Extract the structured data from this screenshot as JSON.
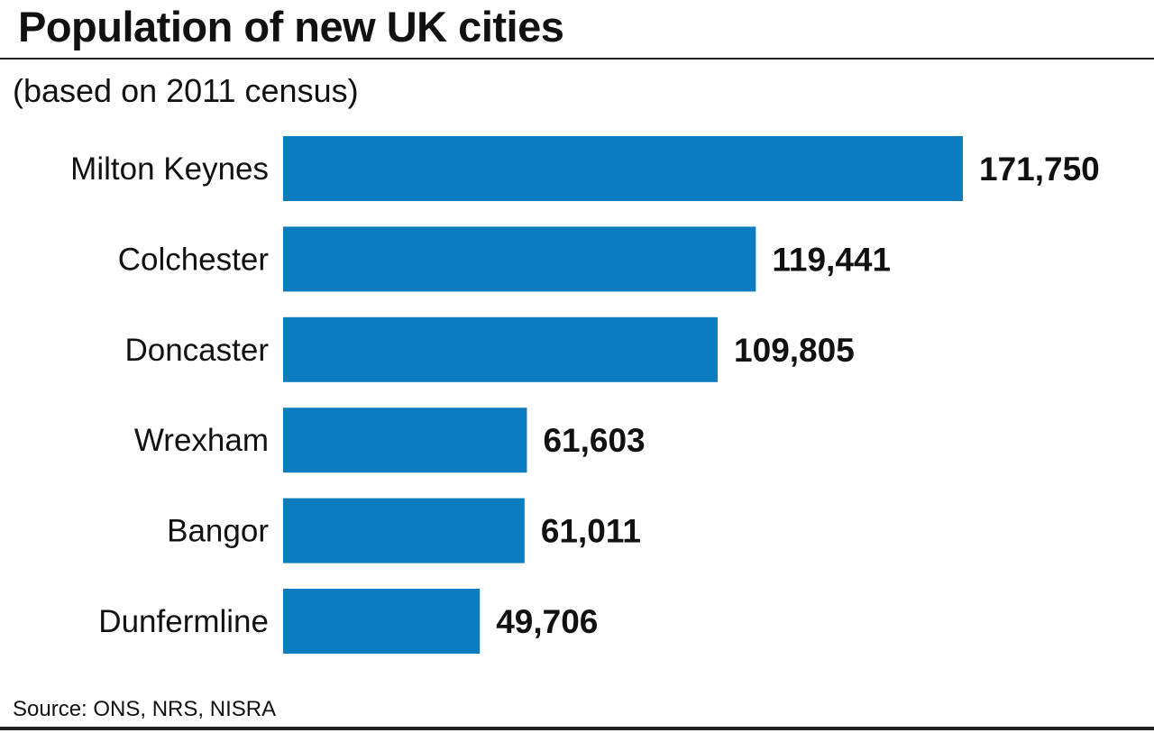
{
  "chart_data": {
    "type": "bar",
    "orientation": "horizontal",
    "title": "Population of new UK cities",
    "subtitle": "(based on 2011 census)",
    "categories": [
      "Milton Keynes",
      "Colchester",
      "Doncaster",
      "Wrexham",
      "Bangor",
      "Dunfermline"
    ],
    "values": [
      171750,
      119441,
      109805,
      61603,
      61011,
      49706
    ],
    "value_labels": [
      "171,750",
      "119,441",
      "109,805",
      "61,603",
      "61,011",
      "49,706"
    ],
    "bar_color": "#0a7cbf",
    "source": "Source: ONS, NRS, NISRA",
    "grid": false,
    "legend": "none"
  }
}
